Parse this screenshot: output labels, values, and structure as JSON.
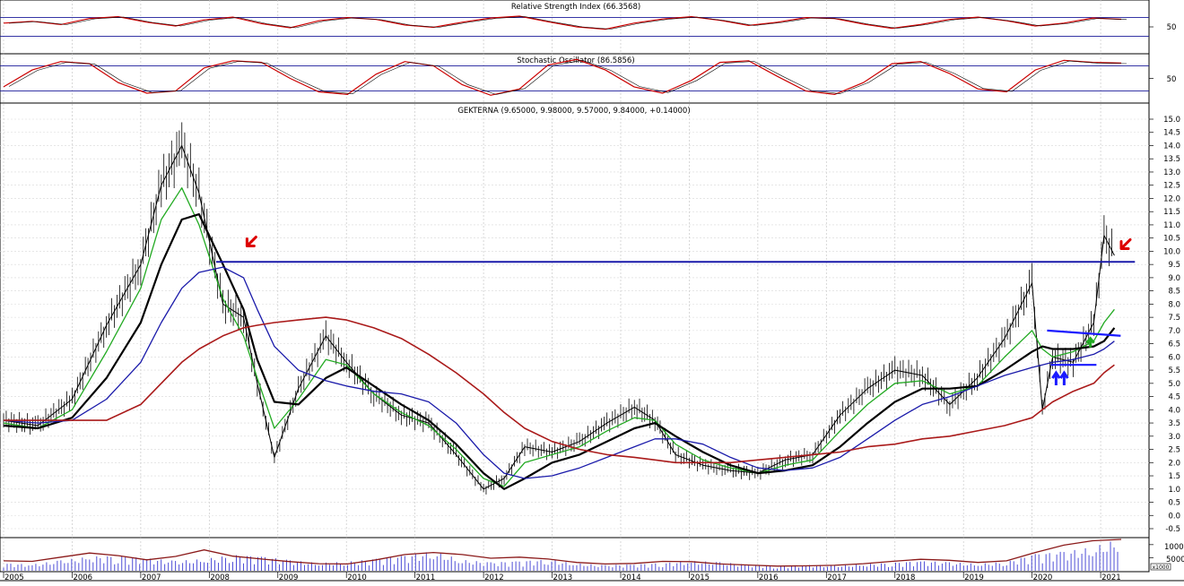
{
  "chart_data": [
    {
      "type": "line",
      "title": "Relative Strength Index (66.3568)",
      "ylim": [
        0,
        100
      ],
      "reference_lines": [
        30,
        70
      ],
      "tick_labels": [
        "50"
      ],
      "grid": true,
      "series": [
        {
          "values": [
            58,
            62,
            55,
            68,
            72,
            60,
            52,
            65,
            71,
            57,
            48,
            63,
            70,
            66,
            54,
            49,
            60,
            69,
            73,
            61,
            50,
            45,
            58,
            67,
            72,
            64,
            53,
            60,
            70,
            68,
            56,
            47,
            55,
            66,
            71,
            63,
            52,
            58,
            69,
            66.36
          ]
        }
      ],
      "color": "#cc0000"
    },
    {
      "type": "line",
      "title": "Stochastic Oscillator (86.5856)",
      "ylim": [
        0,
        100
      ],
      "reference_lines": [
        20,
        80
      ],
      "tick_labels": [
        "50"
      ],
      "grid": true,
      "series": [
        {
          "values": [
            30,
            70,
            90,
            85,
            40,
            15,
            20,
            75,
            92,
            88,
            50,
            18,
            12,
            60,
            90,
            80,
            35,
            10,
            25,
            82,
            95,
            70,
            30,
            15,
            45,
            88,
            92,
            55,
            20,
            12,
            40,
            85,
            90,
            62,
            25,
            18,
            70,
            93,
            88,
            86.59
          ]
        }
      ],
      "colors": [
        "#cc0000",
        "#000000"
      ]
    },
    {
      "type": "line",
      "title": "GEKTERNA (9.65000, 9.98000, 9.57000, 9.84000, +0.14000)",
      "ylim": [
        -1.0,
        15.5
      ],
      "yticks": [
        "15.0",
        "14.5",
        "14.0",
        "13.5",
        "13.0",
        "12.5",
        "12.0",
        "11.5",
        "11.0",
        "10.5",
        "10.0",
        "9.5",
        "9.0",
        "8.5",
        "8.0",
        "7.5",
        "7.0",
        "6.5",
        "6.0",
        "5.5",
        "5.0",
        "4.5",
        "4.0",
        "3.5",
        "3.0",
        "2.5",
        "2.0",
        "1.5",
        "1.0",
        "0.5",
        "0.0",
        "-0.5"
      ],
      "x": [
        2005.0,
        2005.5,
        2006.0,
        2006.5,
        2007.0,
        2007.3,
        2007.6,
        2007.85,
        2008.2,
        2008.5,
        2008.7,
        2008.95,
        2009.3,
        2009.7,
        2010.0,
        2010.4,
        2010.8,
        2011.2,
        2011.6,
        2012.0,
        2012.3,
        2012.6,
        2013.0,
        2013.4,
        2013.8,
        2014.2,
        2014.5,
        2014.8,
        2015.2,
        2015.6,
        2016.0,
        2016.4,
        2016.8,
        2017.2,
        2017.6,
        2018.0,
        2018.4,
        2018.8,
        2019.2,
        2019.6,
        2020.0,
        2020.15,
        2020.3,
        2020.6,
        2020.9,
        2021.05,
        2021.2
      ],
      "series": [
        {
          "name": "GEKTERNA",
          "color": "#000000",
          "values": [
            3.6,
            3.4,
            4.4,
            7.2,
            9.5,
            12.5,
            14.0,
            12.2,
            8.0,
            7.5,
            5.0,
            2.2,
            4.8,
            6.8,
            5.8,
            4.6,
            3.8,
            3.5,
            2.3,
            1.0,
            1.4,
            2.6,
            2.4,
            2.8,
            3.5,
            4.1,
            3.6,
            2.3,
            1.9,
            1.7,
            1.6,
            2.1,
            2.3,
            3.8,
            4.8,
            5.5,
            5.3,
            4.2,
            5.2,
            6.7,
            8.8,
            4.0,
            6.0,
            5.8,
            7.3,
            10.6,
            9.84
          ]
        },
        {
          "name": "",
          "color": "#22aa22",
          "values": [
            3.5,
            3.3,
            4.0,
            6.2,
            8.6,
            11.2,
            12.4,
            11.0,
            8.2,
            6.8,
            5.2,
            3.3,
            4.4,
            5.9,
            5.7,
            4.6,
            3.9,
            3.4,
            2.5,
            1.4,
            1.1,
            2.0,
            2.3,
            2.6,
            3.2,
            3.7,
            3.6,
            2.7,
            2.1,
            1.8,
            1.6,
            1.9,
            2.1,
            3.2,
            4.2,
            5.0,
            5.1,
            4.6,
            4.9,
            6.0,
            7.0,
            6.3,
            6.0,
            6.2,
            6.6,
            7.3,
            7.8
          ]
        },
        {
          "name": "",
          "color": "#000000",
          "values": [
            3.4,
            3.3,
            3.7,
            5.2,
            7.3,
            9.5,
            11.2,
            11.4,
            9.5,
            7.8,
            5.9,
            4.3,
            4.2,
            5.2,
            5.6,
            4.9,
            4.2,
            3.6,
            2.7,
            1.6,
            1.0,
            1.4,
            2.0,
            2.3,
            2.8,
            3.3,
            3.5,
            3.0,
            2.4,
            1.9,
            1.6,
            1.7,
            1.9,
            2.6,
            3.5,
            4.3,
            4.8,
            4.8,
            4.9,
            5.5,
            6.2,
            6.4,
            6.3,
            6.3,
            6.4,
            6.6,
            7.1
          ]
        },
        {
          "name": "",
          "color": "#1a1aaa",
          "values": [
            3.6,
            3.5,
            3.6,
            4.4,
            5.8,
            7.3,
            8.6,
            9.2,
            9.4,
            9.0,
            7.8,
            6.4,
            5.5,
            5.1,
            4.9,
            4.7,
            4.6,
            4.3,
            3.5,
            2.3,
            1.6,
            1.4,
            1.5,
            1.8,
            2.2,
            2.6,
            2.9,
            2.9,
            2.7,
            2.2,
            1.8,
            1.7,
            1.8,
            2.2,
            2.9,
            3.6,
            4.2,
            4.5,
            4.9,
            5.3,
            5.6,
            5.7,
            5.8,
            5.9,
            6.1,
            6.3,
            6.6
          ]
        },
        {
          "name": "",
          "color": "#aa1a1a",
          "values": [
            3.6,
            3.6,
            3.6,
            3.6,
            4.2,
            5.0,
            5.8,
            6.3,
            6.8,
            7.1,
            7.2,
            7.3,
            7.4,
            7.5,
            7.4,
            7.1,
            6.7,
            6.1,
            5.4,
            4.6,
            3.9,
            3.3,
            2.8,
            2.5,
            2.3,
            2.2,
            2.1,
            2.0,
            2.0,
            2.0,
            2.1,
            2.2,
            2.3,
            2.4,
            2.6,
            2.7,
            2.9,
            3.0,
            3.2,
            3.4,
            3.7,
            4.0,
            4.3,
            4.7,
            5.0,
            5.4,
            5.7
          ]
        }
      ],
      "horizontal_line": {
        "value": 9.6,
        "from_x": 2008.1,
        "to_x": 2021.5,
        "color": "#1a1aaa"
      },
      "annotations": [
        {
          "type": "arrow",
          "color": "#dd0000",
          "x": 2008.55,
          "y": 10.2
        },
        {
          "type": "arrow",
          "color": "#dd0000",
          "x": 2021.3,
          "y": 10.1
        },
        {
          "type": "up-arrows",
          "color": "#1a1aff",
          "x": 2020.35,
          "y": 5.4
        },
        {
          "type": "up-arrow",
          "color": "#22aa22",
          "x": 2020.85,
          "y": 6.7
        }
      ],
      "grid": true
    },
    {
      "type": "bar",
      "title": "",
      "yticks": [
        "10000",
        "5000"
      ],
      "ylim": [
        0,
        12000
      ],
      "scale_label": "x1000",
      "x_tick_labels": [
        "2005",
        "2006",
        "2007",
        "2008",
        "2009",
        "2010",
        "2011",
        "2012",
        "2013",
        "2014",
        "2015",
        "2016",
        "2017",
        "2018",
        "2019",
        "2020",
        "2021"
      ],
      "average_line": [
        3800,
        3600,
        5200,
        6800,
        5800,
        4200,
        5500,
        8000,
        5600,
        4500,
        3500,
        2700,
        2600,
        4200,
        6200,
        7000,
        6200,
        4800,
        5200,
        4500,
        3200,
        2600,
        2800,
        3600,
        3500,
        2600,
        2200,
        1800,
        1900,
        2100,
        2700,
        3600,
        4400,
        4000,
        3200,
        3800,
        7000,
        9800,
        11500,
        12000
      ],
      "bars": [
        3000,
        2500,
        4000,
        5500,
        6000,
        5000,
        3800,
        4500,
        6200,
        5800,
        4100,
        3000,
        3500,
        4800,
        6000,
        7500,
        4200,
        3300,
        3900,
        4400,
        2800,
        2200,
        2600,
        3100,
        3800,
        3300,
        2400,
        2000,
        2300,
        2000,
        2500,
        3200,
        3900,
        3300,
        2700,
        3500,
        6800,
        7500,
        9000,
        12500
      ],
      "colors": [
        "#2222cc",
        "#8b1a1a"
      ]
    }
  ]
}
